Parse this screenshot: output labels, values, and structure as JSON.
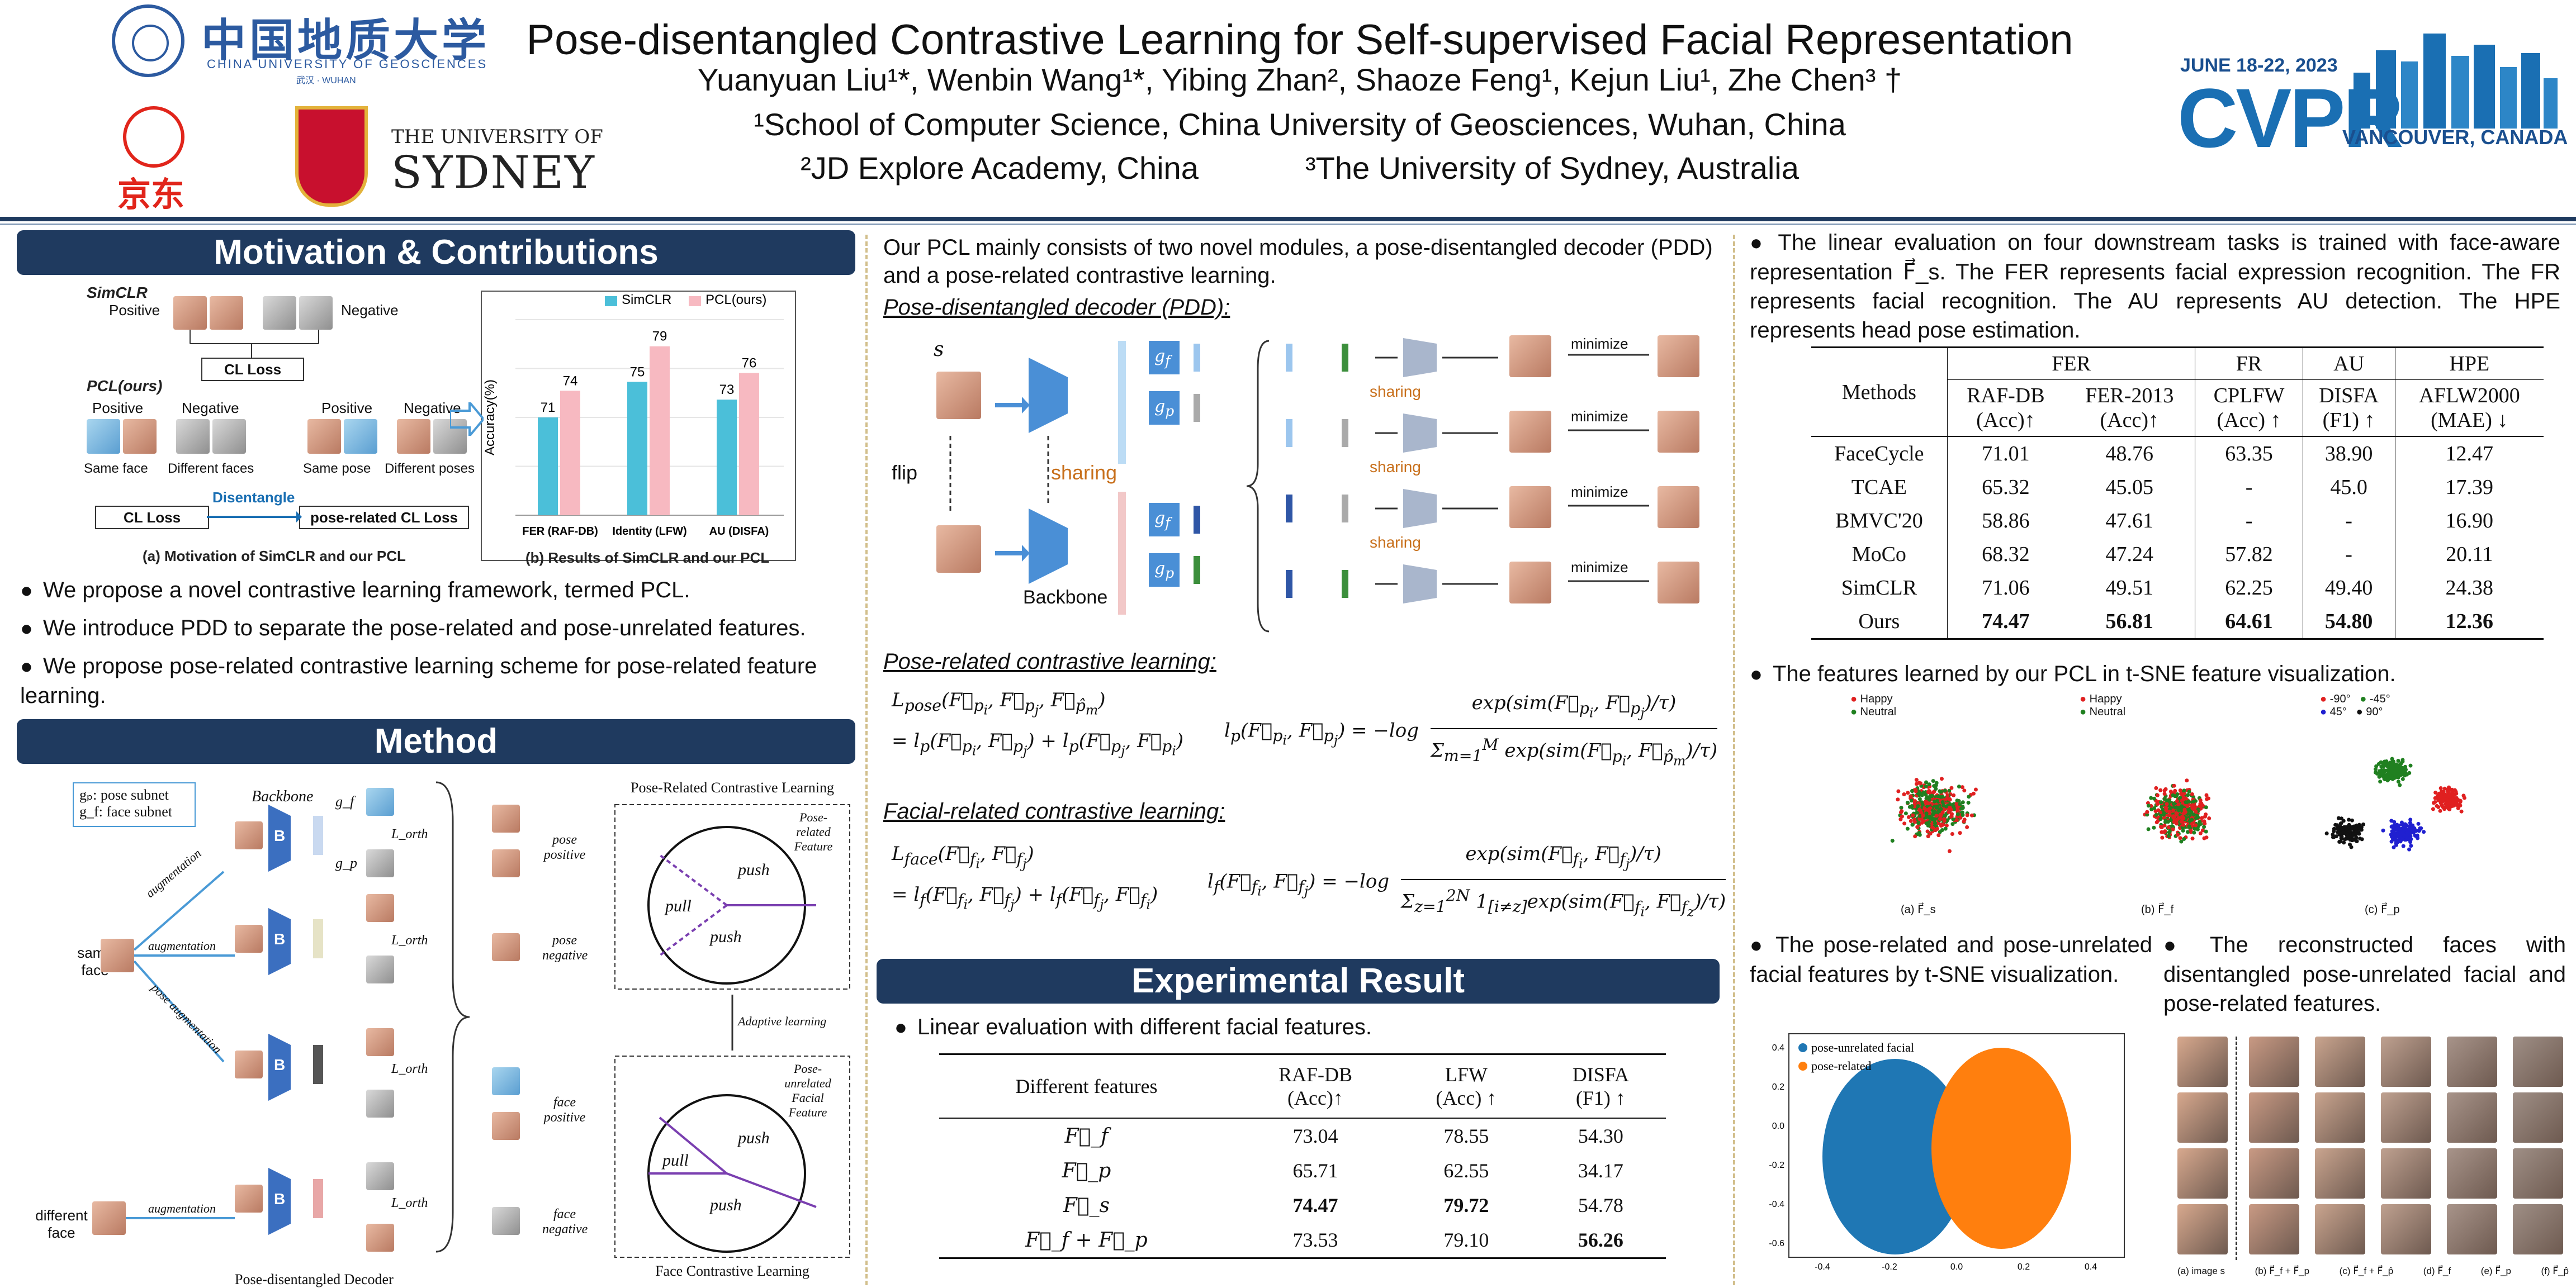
{
  "header": {
    "title": "Pose-disentangled Contrastive Learning for Self-supervised Facial Representation",
    "authors": "Yuanyuan Liu¹*, Wenbin Wang¹*, Yibing Zhan², Shaoze Feng¹, Kejun Liu¹, Zhe Chen³ †",
    "affil1": "¹School of Computer Science, China University of Geosciences, Wuhan, China",
    "affil2a": "²JD Explore Academy, China",
    "affil2b": "³The University of Sydney, Australia",
    "logos": {
      "cug_cn": "中国地质大学",
      "cug_en": "CHINA UNIVERSITY OF GEOSCIENCES",
      "cug_city": "武汉 · WUHAN",
      "jd": "京东",
      "sydney_top": "THE UNIVERSITY OF",
      "sydney_main": "SYDNEY",
      "cvpr_date": "JUNE 18-22, 2023",
      "cvpr_name": "CVPR",
      "cvpr_city": "VANCOUVER, CANADA"
    }
  },
  "motivation": {
    "heading": "Motivation & Contributions",
    "simclr_label": "SimCLR",
    "positive": "Positive",
    "negative": "Negative",
    "cl_loss": "CL Loss",
    "pcl_label": "PCL(ours)",
    "same_face": "Same face",
    "different_faces": "Different faces",
    "same_pose": "Same pose",
    "different_poses": "Different poses",
    "disentangle": "Disentangle",
    "pose_cl_loss": "pose-related CL Loss",
    "caption_a": "(a) Motivation of SimCLR and our PCL",
    "caption_b": "(b) Results of SimCLR and our PCL",
    "bullets": [
      "We propose a novel contrastive learning framework, termed PCL.",
      "We introduce PDD to separate the pose-related and pose-unrelated features.",
      "We propose pose-related contrastive learning scheme for pose-related feature learning."
    ]
  },
  "chart_data": {
    "type": "bar",
    "ylabel": "Accuracy(%)",
    "categories": [
      "FER (RAF-DB)",
      "Identity (LFW)",
      "AU (DISFA)"
    ],
    "series": [
      {
        "name": "SimCLR",
        "values": [
          71,
          75,
          73
        ],
        "color": "#4bbfd9"
      },
      {
        "name": "PCL(ours)",
        "values": [
          74,
          79,
          76
        ],
        "color": "#f7b9c1"
      }
    ],
    "ylim": [
      60,
      82
    ],
    "legend": "top-right"
  },
  "method": {
    "heading": "Method",
    "legend_gp": "gₚ: pose subnet",
    "legend_gf": "g_f: face subnet",
    "backbone": "Backbone",
    "augmentation": "augmentation",
    "pose_augmentation": "pose augmentation",
    "same_face": "same face",
    "different_face": "different face",
    "pdd_label": "Pose-disentangled Decoder",
    "pose_cl_title": "Pose-Related Contrastive Learning",
    "face_cl_title": "Face Contrastive Learning",
    "pose_feature": "Pose-related Feature",
    "face_feature": "Pose-unrelated Facial Feature",
    "adaptive": "Adaptive learning",
    "pose_positive": "pose positive",
    "pose_negative": "pose negative",
    "face_positive": "face positive",
    "face_negative": "face negative",
    "push": "push",
    "pull": "pull",
    "lorth": "L_orth",
    "b": "B",
    "gf": "g_f",
    "gp": "g_p"
  },
  "middle": {
    "intro": "Our PCL mainly consists of two novel modules, a pose-disentangled decoder (PDD) and a pose-related contrastive learning.",
    "pdd_title": "Pose-disentangled decoder (PDD):",
    "flip": "flip",
    "sharing": "sharing",
    "backbone": "Backbone",
    "minimize": "minimize",
    "pose_cl_title": "Pose-related contrastive learning:",
    "face_cl_title": "Facial-related contrastive learning:",
    "experimental_heading": "Experimental Result",
    "linear_bullet": "Linear evaluation with different facial features.",
    "feature_table": {
      "col0": "Different features",
      "cols": [
        [
          "RAF-DB",
          "(Acc)↑"
        ],
        [
          "LFW",
          "(Acc) ↑"
        ],
        [
          "DISFA",
          "(F1) ↑"
        ]
      ],
      "rows": [
        {
          "name": "F⃗_f",
          "vals": [
            "73.04",
            "78.55",
            "54.30"
          ],
          "bold": [
            false,
            false,
            false
          ]
        },
        {
          "name": "F⃗_p",
          "vals": [
            "65.71",
            "62.55",
            "34.17"
          ],
          "bold": [
            false,
            false,
            false
          ]
        },
        {
          "name": "F⃗_s",
          "vals": [
            "74.47",
            "79.72",
            "54.78"
          ],
          "bold": [
            true,
            true,
            false
          ]
        },
        {
          "name": "F⃗_f + F⃗_p",
          "vals": [
            "73.53",
            "79.10",
            "56.26"
          ],
          "bold": [
            false,
            false,
            true
          ]
        }
      ]
    }
  },
  "right": {
    "bullet1": "The linear evaluation on four downstream tasks is trained with face-aware representation F⃗_s. The FER represents facial expression recognition. The FR represents facial recognition. The AU represents AU detection. The HPE represents head pose estimation.",
    "table": {
      "groups": [
        "FER",
        "FR",
        "AU",
        "HPE"
      ],
      "methods_label": "Methods",
      "subcols": [
        [
          "RAF-DB",
          "(Acc)↑"
        ],
        [
          "FER-2013",
          "(Acc)↑"
        ],
        [
          "CPLFW",
          "(Acc) ↑"
        ],
        [
          "DISFA",
          "(F1) ↑"
        ],
        [
          "AFLW2000",
          "(MAE) ↓"
        ]
      ],
      "rows": [
        {
          "name": "FaceCycle",
          "vals": [
            "71.01",
            "48.76",
            "63.35",
            "38.90",
            "12.47"
          ],
          "bold": false
        },
        {
          "name": "TCAE",
          "vals": [
            "65.32",
            "45.05",
            "-",
            "45.0",
            "17.39"
          ],
          "bold": false
        },
        {
          "name": "BMVC'20",
          "vals": [
            "58.86",
            "47.61",
            "-",
            "-",
            "16.90"
          ],
          "bold": false
        },
        {
          "name": "MoCo",
          "vals": [
            "68.32",
            "47.24",
            "57.82",
            "-",
            "20.11"
          ],
          "bold": false
        },
        {
          "name": "SimCLR",
          "vals": [
            "71.06",
            "49.51",
            "62.25",
            "49.40",
            "24.38"
          ],
          "bold": false
        },
        {
          "name": "Ours",
          "vals": [
            "74.47",
            "56.81",
            "64.61",
            "54.80",
            "12.36"
          ],
          "bold": true
        }
      ]
    },
    "tsne_bullet": "The features learned by our PCL in t-SNE feature visualization.",
    "tsne_legends": {
      "happy": "Happy",
      "neutral": "Neutral",
      "m90": "-90°",
      "m45": "-45°",
      "p45": "45°",
      "p90": "90°"
    },
    "tsne_captions": [
      "(a) F⃗_s",
      "(b) F⃗_f",
      "(c) F⃗_p"
    ],
    "pose_tsne_bullet": "The pose-related and pose-unrelated facial features by t-SNE visualization.",
    "pose_tsne_legend": [
      "pose-unrelated facial",
      "pose-related"
    ],
    "pose_tsne_yticks": [
      "0.4",
      "0.2",
      "0.0",
      "-0.2",
      "-0.4",
      "-0.6"
    ],
    "pose_tsne_xticks": [
      "-0.4",
      "-0.2",
      "0.0",
      "0.2",
      "0.4"
    ],
    "recon_bullet": "The reconstructed faces with disentangled pose-unrelated facial and pose-related features.",
    "recon_captions": [
      "(a) image s",
      "(b) F⃗_f + F⃗_p",
      "(c) F⃗_f + F⃗_p̂",
      "(d) F⃗_f",
      "(e) F⃗_p",
      "(f) F⃗_p̂"
    ]
  }
}
